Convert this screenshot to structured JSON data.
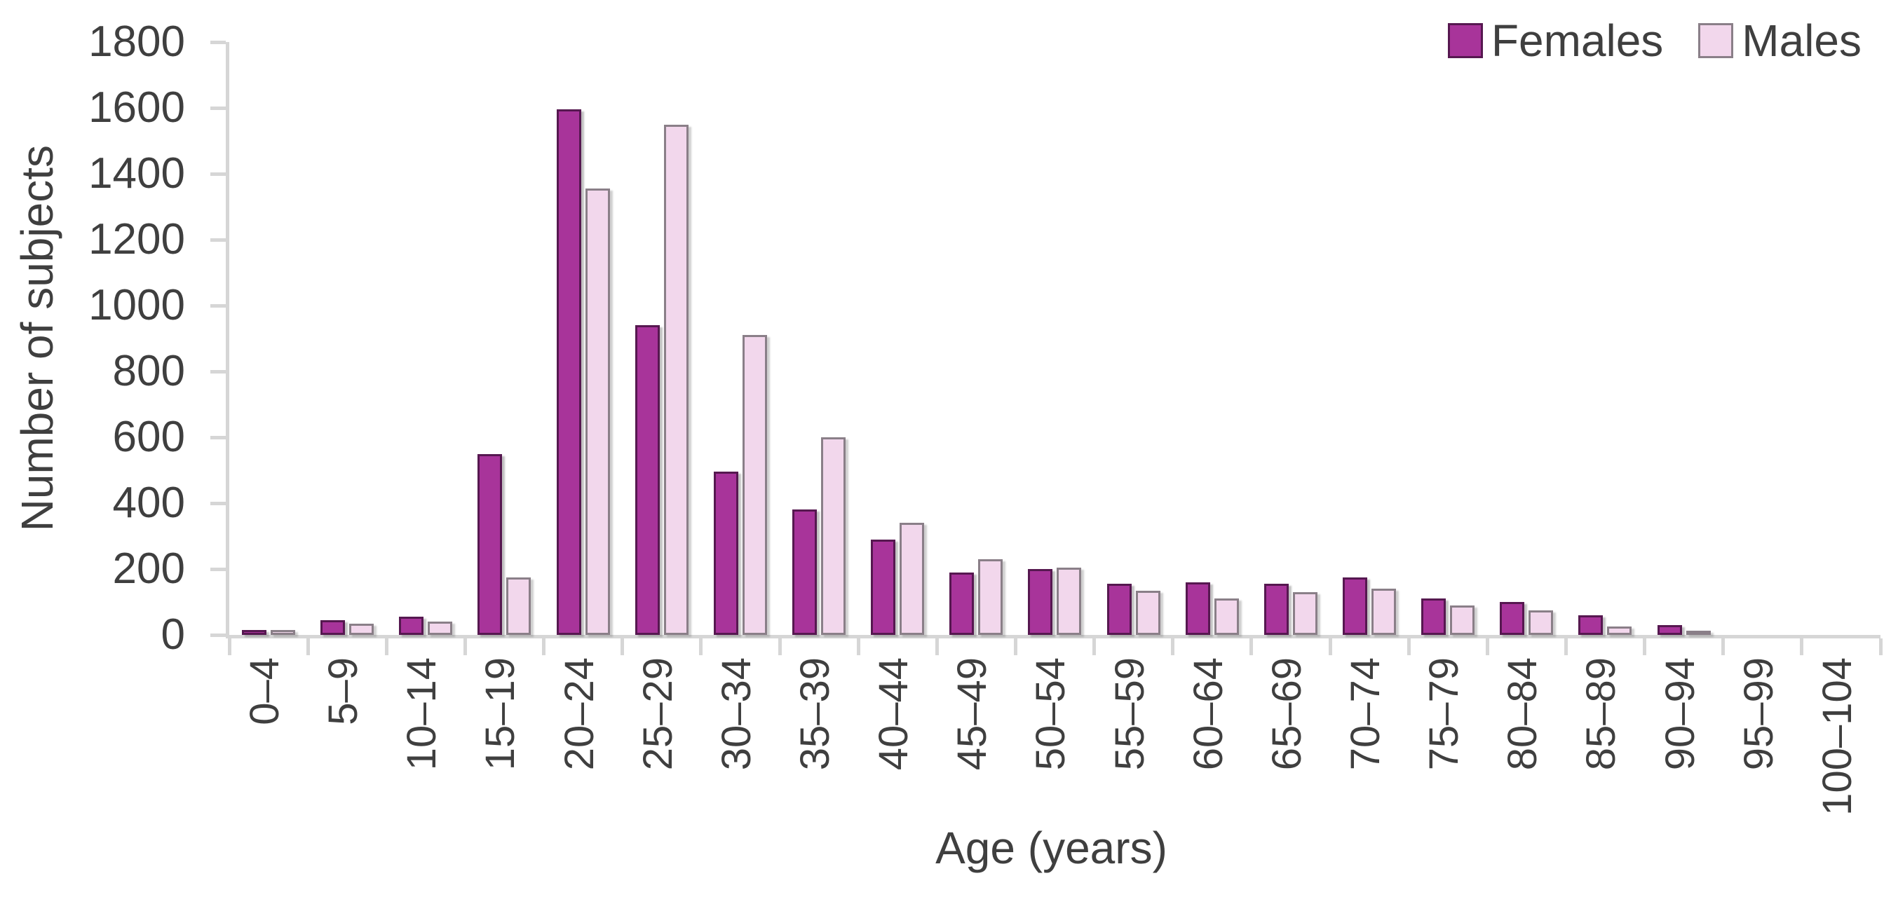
{
  "chart_data": {
    "type": "bar",
    "title": "",
    "xlabel": "Age (years)",
    "ylabel": "Number of subjects",
    "ylim": [
      0,
      1800
    ],
    "ytick_step": 200,
    "grid": false,
    "legend_position": "top-right",
    "categories": [
      "0–4",
      "5–9",
      "10–14",
      "15–19",
      "20–24",
      "25–29",
      "30–34",
      "35–39",
      "40–44",
      "45–49",
      "50–54",
      "55–59",
      "60–64",
      "65–69",
      "70–74",
      "75–79",
      "80–84",
      "85–89",
      "90–94",
      "95–99",
      "100–104"
    ],
    "series": [
      {
        "name": "Females",
        "color": "#a8349a",
        "border_color": "#561850",
        "values": [
          15,
          45,
          55,
          550,
          1595,
          940,
          495,
          380,
          290,
          190,
          200,
          155,
          160,
          155,
          175,
          110,
          100,
          60,
          30,
          0,
          0
        ]
      },
      {
        "name": "Males",
        "color": "#f2d7ec",
        "border_color": "#8a7f88",
        "values": [
          15,
          35,
          40,
          175,
          1355,
          1550,
          910,
          600,
          340,
          230,
          205,
          135,
          110,
          130,
          140,
          90,
          75,
          25,
          10,
          0,
          0
        ]
      }
    ]
  },
  "colors": {
    "axis": "#d6d6d6",
    "text": "#3f3f3f",
    "background": "#ffffff"
  }
}
